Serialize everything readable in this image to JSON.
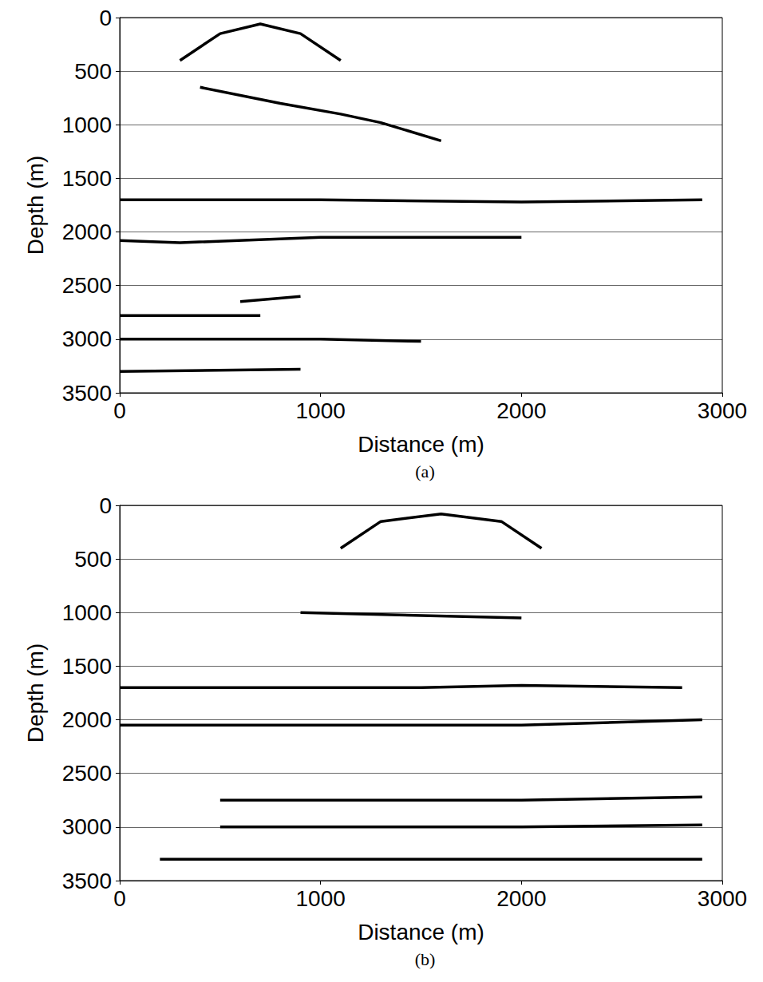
{
  "chart_data": [
    {
      "type": "line",
      "title": "(a)",
      "x_label": "Distance (m)",
      "y_label": "Depth (m)",
      "xlim": [
        0,
        3000
      ],
      "xticks": [
        0,
        1000,
        2000,
        3000
      ],
      "ylim": [
        0,
        3500
      ],
      "yticks": [
        0,
        500,
        1000,
        1500,
        2000,
        2500,
        3000,
        3500
      ],
      "grid": true,
      "line_style": "solid",
      "color": "#000000",
      "series": [
        {
          "x": [
            300,
            500,
            700,
            900,
            1100
          ],
          "values": [
            400,
            150,
            60,
            150,
            400
          ]
        },
        {
          "x": [
            400,
            800,
            1100,
            1300,
            1600
          ],
          "values": [
            650,
            800,
            900,
            980,
            1150
          ]
        },
        {
          "x": [
            0,
            1000,
            2000,
            2900
          ],
          "values": [
            1700,
            1700,
            1720,
            1700
          ]
        },
        {
          "x": [
            0,
            300,
            1000,
            2000
          ],
          "values": [
            2080,
            2100,
            2050,
            2050
          ]
        },
        {
          "x": [
            600,
            900
          ],
          "values": [
            2650,
            2600
          ]
        },
        {
          "x": [
            0,
            700
          ],
          "values": [
            2780,
            2780
          ]
        },
        {
          "x": [
            0,
            1000,
            1500
          ],
          "values": [
            3000,
            3000,
            3020
          ]
        },
        {
          "x": [
            0,
            900
          ],
          "values": [
            3300,
            3280
          ]
        }
      ]
    },
    {
      "type": "line",
      "title": "(b)",
      "x_label": "Distance (m)",
      "y_label": "Depth (m)",
      "xlim": [
        0,
        3000
      ],
      "xticks": [
        0,
        1000,
        2000,
        3000
      ],
      "ylim": [
        0,
        3500
      ],
      "yticks": [
        0,
        500,
        1000,
        1500,
        2000,
        2500,
        3000,
        3500
      ],
      "grid": true,
      "line_style": "solid",
      "color": "#000000",
      "series": [
        {
          "x": [
            1100,
            1300,
            1600,
            1900,
            2100
          ],
          "values": [
            400,
            150,
            80,
            150,
            400
          ]
        },
        {
          "x": [
            900,
            2000
          ],
          "values": [
            1000,
            1050
          ]
        },
        {
          "x": [
            0,
            1500,
            2000,
            2800
          ],
          "values": [
            1700,
            1700,
            1680,
            1700
          ]
        },
        {
          "x": [
            0,
            1000,
            2000,
            2900
          ],
          "values": [
            2050,
            2050,
            2050,
            2000
          ]
        },
        {
          "x": [
            500,
            2000,
            2900
          ],
          "values": [
            2750,
            2750,
            2720
          ]
        },
        {
          "x": [
            500,
            2000,
            2900
          ],
          "values": [
            3000,
            3000,
            2980
          ]
        },
        {
          "x": [
            200,
            2900
          ],
          "values": [
            3300,
            3300
          ]
        }
      ]
    }
  ]
}
